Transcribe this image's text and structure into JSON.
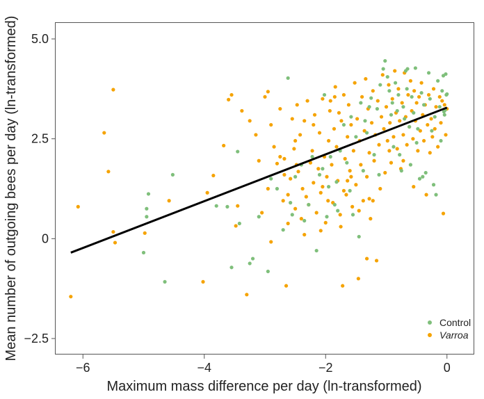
{
  "chart_data": {
    "type": "scatter",
    "title": "",
    "xlabel": "Maximum mass difference per day (ln-transformed)",
    "ylabel": "Mean number of outgoing bees per day (ln-transformed)",
    "xlim": [
      -6.45,
      0.45
    ],
    "ylim": [
      -2.9,
      5.4
    ],
    "xticks": [
      -6,
      -4,
      -2,
      0
    ],
    "xtick_labels": [
      "−6",
      "−4",
      "−2",
      "0"
    ],
    "yticks": [
      -2.5,
      0,
      2.5,
      5.0
    ],
    "ytick_labels": [
      "−2.5",
      "0",
      "2.5",
      "5.0"
    ],
    "grid": false,
    "legend_position": "bottom-right",
    "colors": {
      "control": "#7fbf7b",
      "varroa": "#f5a300",
      "fit": "#000000",
      "frame": "#555555"
    },
    "fit_line": {
      "x": [
        -6.2,
        0.0
      ],
      "y": [
        -0.35,
        3.28
      ]
    },
    "series": [
      {
        "name": "Control",
        "italic": false,
        "points": [
          [
            -5.0,
            -0.35
          ],
          [
            -4.92,
            1.12
          ],
          [
            -4.95,
            0.55
          ],
          [
            -4.95,
            0.75
          ],
          [
            -4.65,
            -1.08
          ],
          [
            -4.52,
            1.6
          ],
          [
            -3.8,
            0.82
          ],
          [
            -3.62,
            0.8
          ],
          [
            -3.55,
            -0.72
          ],
          [
            -3.45,
            2.18
          ],
          [
            -3.42,
            0.38
          ],
          [
            -3.25,
            -0.62
          ],
          [
            -3.2,
            -0.5
          ],
          [
            -3.1,
            0.55
          ],
          [
            -2.95,
            -0.82
          ],
          [
            -2.9,
            1.5
          ],
          [
            -2.8,
            1.25
          ],
          [
            -2.7,
            0.22
          ],
          [
            -2.62,
            4.02
          ],
          [
            -2.55,
            0.6
          ],
          [
            -2.4,
            1.85
          ],
          [
            -2.35,
            0.45
          ],
          [
            -2.28,
            0.85
          ],
          [
            -2.22,
            2.05
          ],
          [
            -2.15,
            -0.3
          ],
          [
            -2.1,
            1.6
          ],
          [
            -2.05,
            1.75
          ],
          [
            -2.02,
            3.6
          ],
          [
            -1.95,
            1.3
          ],
          [
            -1.92,
            2.05
          ],
          [
            -1.85,
            0.85
          ],
          [
            -1.82,
            1.42
          ],
          [
            -1.8,
            0.7
          ],
          [
            -1.76,
            2.2
          ],
          [
            -1.7,
            2.85
          ],
          [
            -1.65,
            1.9
          ],
          [
            -1.6,
            1.2
          ],
          [
            -1.55,
            0.6
          ],
          [
            -1.5,
            2.55
          ],
          [
            -1.45,
            0.05
          ],
          [
            -1.42,
            3.4
          ],
          [
            -1.38,
            1.7
          ],
          [
            -1.32,
            2.65
          ],
          [
            -1.28,
            3.3
          ],
          [
            -1.25,
            3.52
          ],
          [
            -1.2,
            2.1
          ],
          [
            -1.15,
            3.25
          ],
          [
            -1.1,
            3.85
          ],
          [
            -1.05,
            4.25
          ],
          [
            -1.02,
            4.45
          ],
          [
            -0.98,
            4.05
          ],
          [
            -0.95,
            3.7
          ],
          [
            -0.92,
            3.1
          ],
          [
            -0.9,
            3.4
          ],
          [
            -0.88,
            2.3
          ],
          [
            -0.85,
            3.9
          ],
          [
            -0.82,
            3.2
          ],
          [
            -0.8,
            3.6
          ],
          [
            -0.78,
            2.1
          ],
          [
            -0.75,
            1.7
          ],
          [
            -0.72,
            3.3
          ],
          [
            -0.7,
            3.0
          ],
          [
            -0.68,
            4.2
          ],
          [
            -0.65,
            4.25
          ],
          [
            -0.62,
            2.8
          ],
          [
            -0.6,
            1.85
          ],
          [
            -0.58,
            3.55
          ],
          [
            -0.55,
            3.15
          ],
          [
            -0.52,
            4.27
          ],
          [
            -0.5,
            2.4
          ],
          [
            -0.48,
            2.75
          ],
          [
            -0.45,
            1.5
          ],
          [
            -0.42,
            3.65
          ],
          [
            -0.4,
            1.55
          ],
          [
            -0.38,
            3.35
          ],
          [
            -0.35,
            1.65
          ],
          [
            -0.3,
            4.15
          ],
          [
            -0.28,
            3.5
          ],
          [
            -0.25,
            2.7
          ],
          [
            -0.22,
            1.35
          ],
          [
            -0.2,
            3.05
          ],
          [
            -0.18,
            1.1
          ],
          [
            -0.15,
            3.95
          ],
          [
            -0.12,
            3.3
          ],
          [
            -0.1,
            2.45
          ],
          [
            -0.08,
            3.7
          ],
          [
            -0.06,
            4.08
          ],
          [
            -0.04,
            3.1
          ],
          [
            -0.03,
            3.22
          ],
          [
            -0.02,
            4.12
          ],
          [
            -0.01,
            3.6
          ],
          [
            0.0,
            3.62
          ],
          [
            -0.05,
            3.18
          ],
          [
            -1.35,
            2.95
          ],
          [
            -1.58,
            3.05
          ],
          [
            -2.5,
            1.55
          ],
          [
            -2.58,
            0.9
          ],
          [
            -1.98,
            0.55
          ],
          [
            -1.12,
            1.6
          ],
          [
            -0.66,
            3.75
          ]
        ]
      },
      {
        "name": "Varroa",
        "italic": true,
        "points": [
          [
            -6.2,
            -1.45
          ],
          [
            -6.08,
            0.8
          ],
          [
            -5.65,
            2.65
          ],
          [
            -5.58,
            1.68
          ],
          [
            -5.5,
            3.73
          ],
          [
            -5.5,
            0.17
          ],
          [
            -5.47,
            -0.1
          ],
          [
            -4.98,
            0.14
          ],
          [
            -4.58,
            0.95
          ],
          [
            -4.02,
            -1.08
          ],
          [
            -3.95,
            1.15
          ],
          [
            -3.85,
            1.58
          ],
          [
            -3.68,
            2.33
          ],
          [
            -3.6,
            3.48
          ],
          [
            -3.55,
            3.6
          ],
          [
            -3.45,
            0.82
          ],
          [
            -3.3,
            -1.4
          ],
          [
            -3.25,
            2.95
          ],
          [
            -3.1,
            1.95
          ],
          [
            -3.05,
            0.65
          ],
          [
            -3.0,
            3.55
          ],
          [
            -2.95,
            3.68
          ],
          [
            -2.9,
            -0.08
          ],
          [
            -2.85,
            2.3
          ],
          [
            -2.8,
            1.88
          ],
          [
            -2.75,
            3.25
          ],
          [
            -2.7,
            0.95
          ],
          [
            -2.68,
            2.0
          ],
          [
            -2.65,
            -1.18
          ],
          [
            -2.62,
            0.38
          ],
          [
            -2.58,
            1.5
          ],
          [
            -2.55,
            3.0
          ],
          [
            -2.52,
            2.25
          ],
          [
            -2.5,
            0.75
          ],
          [
            -2.47,
            3.35
          ],
          [
            -2.45,
            1.68
          ],
          [
            -2.42,
            2.6
          ],
          [
            -2.4,
            0.5
          ],
          [
            -2.38,
            1.25
          ],
          [
            -2.35,
            2.95
          ],
          [
            -2.32,
            1.05
          ],
          [
            -2.3,
            3.45
          ],
          [
            -2.28,
            0.85
          ],
          [
            -2.25,
            1.9
          ],
          [
            -2.22,
            2.2
          ],
          [
            -2.2,
            1.4
          ],
          [
            -2.18,
            3.1
          ],
          [
            -2.15,
            0.65
          ],
          [
            -2.12,
            1.75
          ],
          [
            -2.1,
            2.65
          ],
          [
            -2.08,
            1.15
          ],
          [
            -2.05,
            3.5
          ],
          [
            -2.02,
            2.05
          ],
          [
            -2.0,
            0.4
          ],
          [
            -1.98,
            1.55
          ],
          [
            -1.95,
            2.45
          ],
          [
            -1.93,
            3.2
          ],
          [
            -1.9,
            1.85
          ],
          [
            -1.88,
            0.9
          ],
          [
            -1.86,
            2.75
          ],
          [
            -1.84,
            3.8
          ],
          [
            -1.82,
            2.3
          ],
          [
            -1.8,
            1.45
          ],
          [
            -1.78,
            3.15
          ],
          [
            -1.76,
            0.6
          ],
          [
            -1.74,
            2.95
          ],
          [
            -1.72,
            -1.18
          ],
          [
            -1.7,
            3.6
          ],
          [
            -1.68,
            2.0
          ],
          [
            -1.66,
            1.1
          ],
          [
            -1.64,
            2.55
          ],
          [
            -1.62,
            3.35
          ],
          [
            -1.6,
            1.7
          ],
          [
            -1.58,
            2.85
          ],
          [
            -1.56,
            0.8
          ],
          [
            -1.54,
            2.2
          ],
          [
            -1.52,
            3.9
          ],
          [
            -1.5,
            1.35
          ],
          [
            -1.48,
            3.0
          ],
          [
            -1.46,
            -1.0
          ],
          [
            -1.44,
            2.45
          ],
          [
            -1.42,
            1.85
          ],
          [
            -1.4,
            3.55
          ],
          [
            -1.38,
            0.95
          ],
          [
            -1.36,
            2.7
          ],
          [
            -1.34,
            4.0
          ],
          [
            -1.32,
            1.55
          ],
          [
            -1.3,
            3.25
          ],
          [
            -1.28,
            2.15
          ],
          [
            -1.26,
            0.5
          ],
          [
            -1.24,
            2.9
          ],
          [
            -1.22,
            3.7
          ],
          [
            -1.2,
            1.95
          ],
          [
            -1.18,
            2.6
          ],
          [
            -1.16,
            -0.55
          ],
          [
            -1.14,
            3.45
          ],
          [
            -1.12,
            2.35
          ],
          [
            -1.1,
            1.25
          ],
          [
            -1.08,
            3.05
          ],
          [
            -1.06,
            4.1
          ],
          [
            -1.04,
            2.75
          ],
          [
            -1.02,
            1.65
          ],
          [
            -1.0,
            3.3
          ],
          [
            -0.98,
            2.45
          ],
          [
            -0.96,
            3.85
          ],
          [
            -0.94,
            2.9
          ],
          [
            -0.92,
            1.9
          ],
          [
            -0.9,
            3.5
          ],
          [
            -0.88,
            2.55
          ],
          [
            -0.86,
            4.2
          ],
          [
            -0.84,
            3.15
          ],
          [
            -0.82,
            2.25
          ],
          [
            -0.8,
            3.75
          ],
          [
            -0.78,
            2.95
          ],
          [
            -0.76,
            1.75
          ],
          [
            -0.74,
            3.4
          ],
          [
            -0.72,
            2.6
          ],
          [
            -0.7,
            4.15
          ],
          [
            -0.68,
            3.05
          ],
          [
            -0.66,
            2.35
          ],
          [
            -0.64,
            3.6
          ],
          [
            -0.62,
            2.8
          ],
          [
            -0.6,
            3.95
          ],
          [
            -0.58,
            3.2
          ],
          [
            -0.56,
            2.5
          ],
          [
            -0.54,
            3.7
          ],
          [
            -0.52,
            2.95
          ],
          [
            -0.5,
            3.4
          ],
          [
            -0.48,
            2.2
          ],
          [
            -0.46,
            3.55
          ],
          [
            -0.44,
            2.7
          ],
          [
            -0.42,
            3.9
          ],
          [
            -0.4,
            3.1
          ],
          [
            -0.38,
            2.45
          ],
          [
            -0.36,
            3.35
          ],
          [
            -0.34,
            1.1
          ],
          [
            -0.32,
            2.85
          ],
          [
            -0.3,
            3.6
          ],
          [
            -0.28,
            2.15
          ],
          [
            -0.26,
            3.0
          ],
          [
            -0.24,
            2.55
          ],
          [
            -0.22,
            3.75
          ],
          [
            -0.2,
            2.75
          ],
          [
            -0.18,
            3.3
          ],
          [
            -0.15,
            2.3
          ],
          [
            -0.12,
            3.55
          ],
          [
            -0.1,
            2.9
          ],
          [
            -0.08,
            3.45
          ],
          [
            -0.06,
            0.63
          ],
          [
            -0.04,
            3.35
          ],
          [
            -0.02,
            2.6
          ],
          [
            0.0,
            3.25
          ],
          [
            -2.62,
            1.1
          ],
          [
            -2.48,
            1.85
          ],
          [
            -1.96,
            0.95
          ],
          [
            -1.7,
            1.2
          ],
          [
            -1.45,
            0.7
          ],
          [
            -1.32,
            -0.5
          ],
          [
            -2.2,
            2.85
          ],
          [
            -1.92,
            3.45
          ],
          [
            -2.68,
            1.6
          ],
          [
            -3.15,
            2.6
          ],
          [
            -2.95,
            1.25
          ],
          [
            -2.75,
            2.05
          ],
          [
            -3.38,
            3.2
          ],
          [
            -1.58,
            1.55
          ],
          [
            -1.22,
            0.95
          ],
          [
            -0.95,
            2.2
          ],
          [
            -0.72,
            1.95
          ],
          [
            -2.08,
            0.2
          ],
          [
            -1.75,
            0.3
          ],
          [
            -3.48,
            0.32
          ],
          [
            -1.85,
            3.55
          ],
          [
            -2.35,
            0.1
          ],
          [
            -1.64,
            1.45
          ],
          [
            -0.55,
            1.3
          ],
          [
            -2.05,
            1.3
          ],
          [
            -2.5,
            2.45
          ],
          [
            -1.28,
            1.0
          ],
          [
            -2.9,
            2.85
          ]
        ]
      }
    ]
  }
}
